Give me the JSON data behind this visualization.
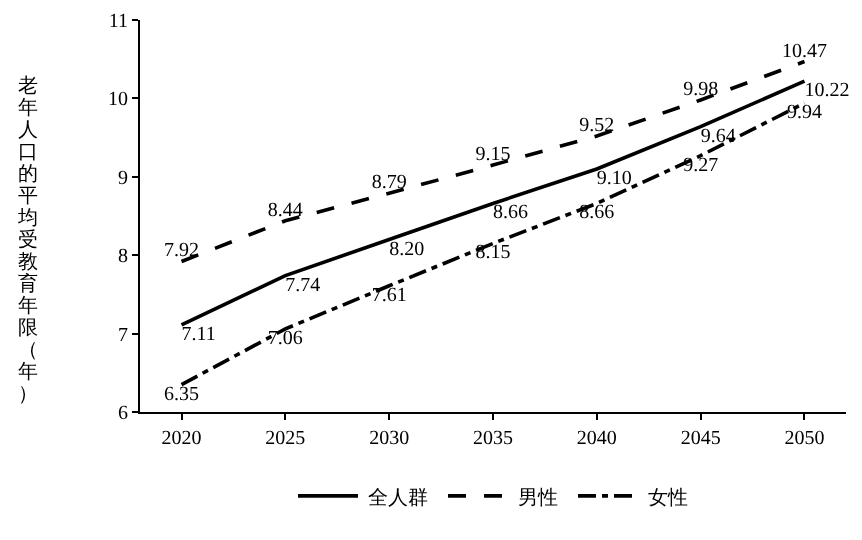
{
  "chart_data": {
    "type": "line",
    "ylabel": "老年人口的平均受教育年限（年）",
    "x": [
      2020,
      2025,
      2030,
      2035,
      2040,
      2045,
      2050
    ],
    "xlim": [
      2018,
      2052
    ],
    "xticks": [
      2020,
      2025,
      2030,
      2035,
      2040,
      2045,
      2050
    ],
    "ylim": [
      6,
      11
    ],
    "yticks": [
      6,
      7,
      8,
      9,
      10,
      11
    ],
    "grid": false,
    "legend": "bottom",
    "marker": "none",
    "series": [
      {
        "name": "全人群",
        "color": "#000000",
        "line_style": "solid",
        "values": [
          7.11,
          7.74,
          8.2,
          8.66,
          9.1,
          9.64,
          10.22
        ],
        "value_labels": [
          "7.11",
          "7.74",
          "8.20",
          "8.66",
          "9.10",
          "9.64",
          "10.22"
        ]
      },
      {
        "name": "男性",
        "color": "#000000",
        "line_style": "dashed",
        "values": [
          7.92,
          8.44,
          8.79,
          9.15,
          9.52,
          9.98,
          10.47
        ],
        "value_labels": [
          "7.92",
          "8.44",
          "8.79",
          "9.15",
          "9.52",
          "9.98",
          "10.47"
        ]
      },
      {
        "name": "女性",
        "color": "#000000",
        "line_style": "dashdot",
        "values": [
          6.35,
          7.06,
          7.61,
          8.15,
          8.66,
          9.27,
          9.94
        ],
        "value_labels": [
          "6.35",
          "7.06",
          "7.61",
          "8.15",
          "8.66",
          "9.27",
          "9.94"
        ]
      }
    ]
  }
}
